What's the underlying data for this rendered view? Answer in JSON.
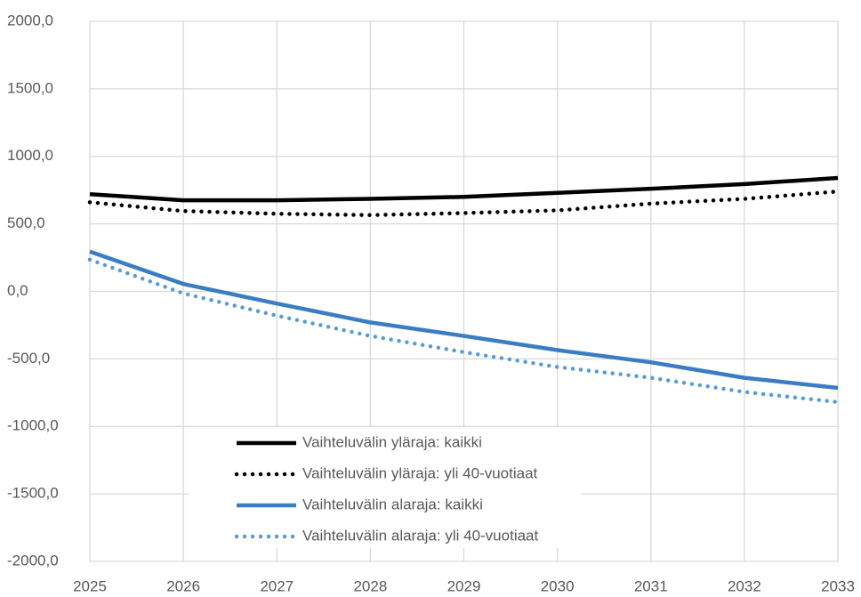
{
  "chart_data": {
    "type": "line",
    "x": [
      2025,
      2026,
      2027,
      2028,
      2029,
      2030,
      2031,
      2032,
      2033
    ],
    "xlim": [
      2025,
      2033
    ],
    "xticks": [
      2025,
      2026,
      2027,
      2028,
      2029,
      2030,
      2031,
      2032,
      2033
    ],
    "ylim": [
      -2000,
      2000
    ],
    "yticks": [
      {
        "value": -2000,
        "label": "-2000,0"
      },
      {
        "value": -1500,
        "label": "-1500,0"
      },
      {
        "value": -1000,
        "label": "-1000,0"
      },
      {
        "value": -500,
        "label": "-500,0"
      },
      {
        "value": 0,
        "label": "0,0"
      },
      {
        "value": 500,
        "label": "500,0"
      },
      {
        "value": 1000,
        "label": "1000,0"
      },
      {
        "value": 1500,
        "label": "1500,0"
      },
      {
        "value": 2000,
        "label": "2000,0"
      }
    ],
    "grid": true,
    "legend": "bottom-left",
    "series": [
      {
        "name": "Vaihteluvälin yläraja: kaikki",
        "color": "#000000",
        "style": "solid",
        "values": [
          720,
          675,
          675,
          685,
          700,
          730,
          760,
          795,
          840
        ]
      },
      {
        "name": "Vaihteluvälin yläraja: yli 40-vuotiaat",
        "color": "#000000",
        "style": "dotted",
        "values": [
          660,
          595,
          575,
          565,
          580,
          600,
          650,
          685,
          740
        ]
      },
      {
        "name": "Vaihteluvälin alaraja: kaikki",
        "color": "#3b7dc3",
        "style": "solid",
        "values": [
          295,
          55,
          -90,
          -230,
          -330,
          -435,
          -525,
          -640,
          -715
        ]
      },
      {
        "name": "Vaihteluvälin alaraja: yli 40-vuotiaat",
        "color": "#5b9bd5",
        "style": "dotted",
        "values": [
          235,
          -15,
          -180,
          -330,
          -450,
          -560,
          -640,
          -745,
          -820
        ]
      }
    ]
  }
}
